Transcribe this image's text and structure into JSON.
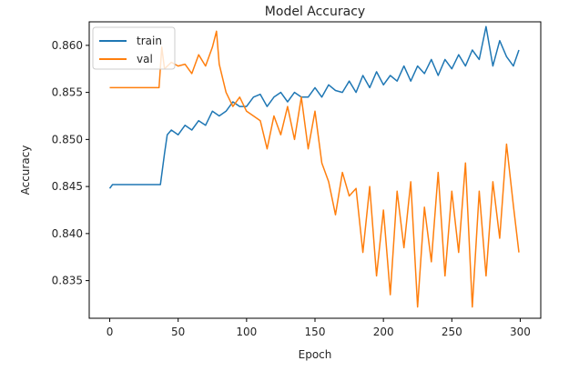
{
  "chart_data": {
    "type": "line",
    "title": "Model Accuracy",
    "xlabel": "Epoch",
    "ylabel": "Accuracy",
    "xlim": [
      -15,
      315
    ],
    "ylim": [
      0.831,
      0.8625
    ],
    "xticks": [
      0,
      50,
      100,
      150,
      200,
      250,
      300
    ],
    "yticks": [
      0.835,
      0.84,
      0.845,
      0.85,
      0.855,
      0.86
    ],
    "ytick_labels": [
      "0.835",
      "0.840",
      "0.845",
      "0.850",
      "0.855",
      "0.860"
    ],
    "legend_position": "upper-left",
    "series": [
      {
        "name": "train",
        "color": "#1f77b4",
        "x": [
          0,
          2,
          10,
          20,
          30,
          37,
          40,
          42,
          45,
          50,
          55,
          60,
          65,
          70,
          75,
          80,
          85,
          90,
          95,
          100,
          105,
          110,
          115,
          120,
          125,
          130,
          135,
          140,
          145,
          150,
          155,
          160,
          165,
          170,
          175,
          180,
          185,
          190,
          195,
          200,
          205,
          210,
          215,
          220,
          225,
          230,
          235,
          240,
          245,
          250,
          255,
          260,
          265,
          270,
          275,
          280,
          285,
          290,
          295,
          299
        ],
        "values": [
          0.8448,
          0.8452,
          0.8452,
          0.8452,
          0.8452,
          0.8452,
          0.8485,
          0.8505,
          0.851,
          0.8505,
          0.8515,
          0.851,
          0.852,
          0.8515,
          0.853,
          0.8525,
          0.853,
          0.854,
          0.8535,
          0.8535,
          0.8545,
          0.8548,
          0.8535,
          0.8545,
          0.855,
          0.854,
          0.855,
          0.8545,
          0.8545,
          0.8555,
          0.8545,
          0.8558,
          0.8552,
          0.855,
          0.8562,
          0.855,
          0.8568,
          0.8555,
          0.8572,
          0.8558,
          0.8568,
          0.8562,
          0.8578,
          0.8562,
          0.8578,
          0.857,
          0.8585,
          0.8568,
          0.8585,
          0.8575,
          0.859,
          0.8578,
          0.8595,
          0.8585,
          0.862,
          0.8578,
          0.8605,
          0.8588,
          0.8578,
          0.8595
        ]
      },
      {
        "name": "val",
        "color": "#ff7f0e",
        "x": [
          0,
          10,
          20,
          30,
          36,
          38,
          40,
          45,
          50,
          55,
          60,
          65,
          70,
          75,
          78,
          80,
          85,
          90,
          95,
          100,
          105,
          110,
          115,
          120,
          125,
          130,
          135,
          140,
          145,
          150,
          155,
          160,
          165,
          170,
          175,
          180,
          185,
          190,
          195,
          200,
          205,
          210,
          215,
          220,
          225,
          230,
          235,
          240,
          245,
          250,
          255,
          260,
          265,
          270,
          275,
          280,
          285,
          290,
          295,
          299
        ],
        "values": [
          0.8555,
          0.8555,
          0.8555,
          0.8555,
          0.8555,
          0.8598,
          0.8575,
          0.8582,
          0.8578,
          0.858,
          0.857,
          0.859,
          0.8578,
          0.8598,
          0.8615,
          0.858,
          0.855,
          0.8535,
          0.8545,
          0.853,
          0.8525,
          0.852,
          0.849,
          0.8525,
          0.8505,
          0.8535,
          0.85,
          0.8545,
          0.849,
          0.853,
          0.8475,
          0.8455,
          0.842,
          0.8465,
          0.844,
          0.8448,
          0.838,
          0.845,
          0.8355,
          0.8425,
          0.8335,
          0.8445,
          0.8385,
          0.8455,
          0.8322,
          0.8428,
          0.837,
          0.8465,
          0.8355,
          0.8445,
          0.838,
          0.8475,
          0.8322,
          0.8445,
          0.8355,
          0.8455,
          0.8395,
          0.8495,
          0.843,
          0.838
        ]
      }
    ]
  }
}
